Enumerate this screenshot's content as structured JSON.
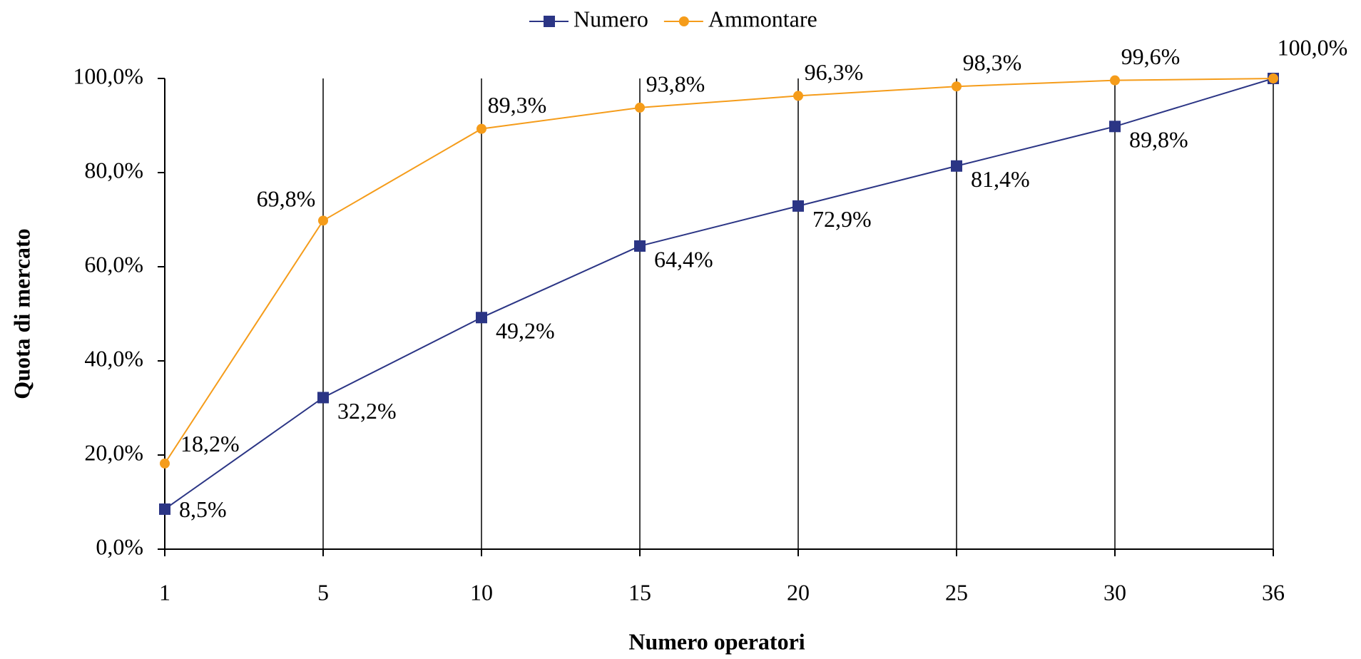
{
  "chart_data": {
    "type": "line",
    "categories": [
      "1",
      "5",
      "10",
      "15",
      "20",
      "25",
      "30",
      "36"
    ],
    "xlabel": "Numero operatori",
    "ylabel": "Quota di mercato",
    "ylim": [
      0,
      100
    ],
    "yticks": [
      {
        "value": 0,
        "label": "0,0%"
      },
      {
        "value": 20,
        "label": "20,0%"
      },
      {
        "value": 40,
        "label": "40,0%"
      },
      {
        "value": 60,
        "label": "60,0%"
      },
      {
        "value": 80,
        "label": "80,0%"
      },
      {
        "value": 100,
        "label": "100,0%"
      }
    ],
    "grid": true,
    "legend": "top",
    "series": [
      {
        "name": "Numero",
        "color": "#2b3585",
        "marker": "square",
        "values": [
          8.5,
          32.2,
          49.2,
          64.4,
          72.9,
          81.4,
          89.8,
          100
        ],
        "value_labels": [
          "8,5%",
          "32,2%",
          "49,2%",
          "64,4%",
          "72,9%",
          "81,4%",
          "89,8%",
          null
        ]
      },
      {
        "name": "Ammontare",
        "color": "#f59c1a",
        "marker": "circle",
        "values": [
          18.2,
          69.8,
          89.3,
          93.8,
          96.3,
          98.3,
          99.6,
          100
        ],
        "value_labels": [
          "18,2%",
          "69,8%",
          "89,3%",
          "93,8%",
          "96,3%",
          "98,3%",
          "99,6%",
          "100,0%"
        ]
      }
    ]
  }
}
